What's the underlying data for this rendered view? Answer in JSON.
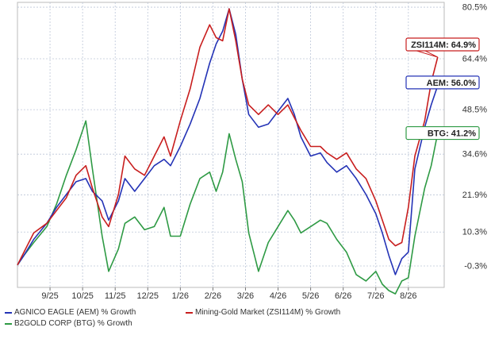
{
  "chart_data": {
    "type": "line",
    "title": "",
    "xlabel": "",
    "ylabel": "",
    "x_ticks": [
      "9/25",
      "10/25",
      "11/25",
      "12/25",
      "1/26",
      "2/26",
      "3/26",
      "4/26",
      "5/26",
      "6/26",
      "7/26",
      "8/26"
    ],
    "y_ticks": [
      "80.5%",
      "64.4%",
      "48.5%",
      "34.6%",
      "21.9%",
      "10.3%",
      "-0.3%"
    ],
    "y_tick_values": [
      80.5,
      64.4,
      48.5,
      34.6,
      21.9,
      10.3,
      -0.3
    ],
    "xlim": [
      0,
      13.1
    ],
    "ylim": [
      -7,
      82
    ],
    "grid": true,
    "legend_position": "bottom",
    "series": [
      {
        "name": "AGNICO EAGLE (AEM) % Growth",
        "label": "AEM: 56.0%",
        "color": "#2433b6",
        "final": 56.0,
        "values": [
          [
            0,
            0
          ],
          [
            0.2,
            3
          ],
          [
            0.5,
            8
          ],
          [
            0.9,
            13
          ],
          [
            1.2,
            18
          ],
          [
            1.5,
            22
          ],
          [
            1.8,
            26
          ],
          [
            2.1,
            27
          ],
          [
            2.3,
            23
          ],
          [
            2.6,
            20
          ],
          [
            2.8,
            14
          ],
          [
            3.1,
            20
          ],
          [
            3.3,
            27
          ],
          [
            3.6,
            23
          ],
          [
            3.9,
            27
          ],
          [
            4.2,
            31
          ],
          [
            4.5,
            33
          ],
          [
            4.7,
            31
          ],
          [
            5.0,
            37
          ],
          [
            5.3,
            44
          ],
          [
            5.6,
            52
          ],
          [
            5.9,
            63
          ],
          [
            6.1,
            69
          ],
          [
            6.3,
            73
          ],
          [
            6.5,
            80
          ],
          [
            6.7,
            72
          ],
          [
            6.9,
            58
          ],
          [
            7.1,
            47
          ],
          [
            7.4,
            43
          ],
          [
            7.7,
            44
          ],
          [
            8.0,
            48
          ],
          [
            8.3,
            52
          ],
          [
            8.5,
            47
          ],
          [
            8.7,
            40
          ],
          [
            9.0,
            34
          ],
          [
            9.3,
            35
          ],
          [
            9.5,
            32
          ],
          [
            9.8,
            29
          ],
          [
            10.1,
            31
          ],
          [
            10.4,
            27
          ],
          [
            10.7,
            22
          ],
          [
            11.0,
            16
          ],
          [
            11.2,
            10
          ],
          [
            11.4,
            3
          ],
          [
            11.6,
            -3
          ],
          [
            11.8,
            2
          ],
          [
            12.0,
            4
          ],
          [
            12.2,
            30
          ],
          [
            12.5,
            43
          ],
          [
            12.7,
            50
          ],
          [
            12.9,
            56
          ]
        ]
      },
      {
        "name": "Mining-Gold Market (ZSI114M) % Growth",
        "label": "ZSI114M: 64.9%",
        "color": "#c81e1e",
        "final": 64.9,
        "values": [
          [
            0,
            0
          ],
          [
            0.2,
            4
          ],
          [
            0.5,
            10
          ],
          [
            0.9,
            13
          ],
          [
            1.2,
            17
          ],
          [
            1.5,
            21
          ],
          [
            1.8,
            28
          ],
          [
            2.1,
            31
          ],
          [
            2.3,
            24
          ],
          [
            2.6,
            15
          ],
          [
            2.8,
            12
          ],
          [
            3.1,
            22
          ],
          [
            3.3,
            34
          ],
          [
            3.6,
            30
          ],
          [
            3.9,
            28
          ],
          [
            4.2,
            34
          ],
          [
            4.5,
            40
          ],
          [
            4.7,
            34
          ],
          [
            5.0,
            45
          ],
          [
            5.3,
            55
          ],
          [
            5.6,
            68
          ],
          [
            5.9,
            75
          ],
          [
            6.1,
            71
          ],
          [
            6.3,
            70
          ],
          [
            6.5,
            80
          ],
          [
            6.7,
            70
          ],
          [
            6.9,
            58
          ],
          [
            7.1,
            50
          ],
          [
            7.4,
            47
          ],
          [
            7.7,
            50
          ],
          [
            8.0,
            47
          ],
          [
            8.3,
            50
          ],
          [
            8.5,
            46
          ],
          [
            8.7,
            42
          ],
          [
            9.0,
            37
          ],
          [
            9.3,
            37
          ],
          [
            9.5,
            35
          ],
          [
            9.8,
            33
          ],
          [
            10.1,
            35
          ],
          [
            10.4,
            30
          ],
          [
            10.7,
            27
          ],
          [
            11.0,
            20
          ],
          [
            11.2,
            14
          ],
          [
            11.4,
            8
          ],
          [
            11.6,
            6
          ],
          [
            11.8,
            7
          ],
          [
            12.0,
            18
          ],
          [
            12.2,
            34
          ],
          [
            12.5,
            45
          ],
          [
            12.7,
            57
          ],
          [
            12.9,
            64.9
          ]
        ]
      },
      {
        "name": "B2GOLD CORP (BTG) % Growth",
        "label": "BTG: 41.2%",
        "color": "#2e9a44",
        "final": 41.2,
        "values": [
          [
            0,
            0
          ],
          [
            0.2,
            3
          ],
          [
            0.5,
            7
          ],
          [
            0.9,
            12
          ],
          [
            1.2,
            19
          ],
          [
            1.5,
            28
          ],
          [
            1.8,
            36
          ],
          [
            2.1,
            45
          ],
          [
            2.3,
            30
          ],
          [
            2.6,
            9
          ],
          [
            2.8,
            -2
          ],
          [
            3.1,
            5
          ],
          [
            3.3,
            13
          ],
          [
            3.6,
            15
          ],
          [
            3.9,
            11
          ],
          [
            4.2,
            12
          ],
          [
            4.5,
            18
          ],
          [
            4.7,
            9
          ],
          [
            5.0,
            9
          ],
          [
            5.3,
            19
          ],
          [
            5.6,
            27
          ],
          [
            5.9,
            29
          ],
          [
            6.1,
            23
          ],
          [
            6.3,
            29
          ],
          [
            6.5,
            41
          ],
          [
            6.7,
            33
          ],
          [
            6.9,
            26
          ],
          [
            7.1,
            10
          ],
          [
            7.4,
            -2
          ],
          [
            7.7,
            7
          ],
          [
            8.0,
            12
          ],
          [
            8.3,
            17
          ],
          [
            8.5,
            14
          ],
          [
            8.7,
            10
          ],
          [
            9.0,
            12
          ],
          [
            9.3,
            14
          ],
          [
            9.5,
            13
          ],
          [
            9.8,
            8
          ],
          [
            10.1,
            4
          ],
          [
            10.4,
            -3
          ],
          [
            10.7,
            -5
          ],
          [
            11.0,
            -2
          ],
          [
            11.2,
            -6
          ],
          [
            11.4,
            -8
          ],
          [
            11.6,
            -9
          ],
          [
            11.8,
            -5
          ],
          [
            12.0,
            -4
          ],
          [
            12.2,
            9
          ],
          [
            12.5,
            24
          ],
          [
            12.7,
            31
          ],
          [
            12.9,
            41.2
          ]
        ]
      }
    ]
  }
}
